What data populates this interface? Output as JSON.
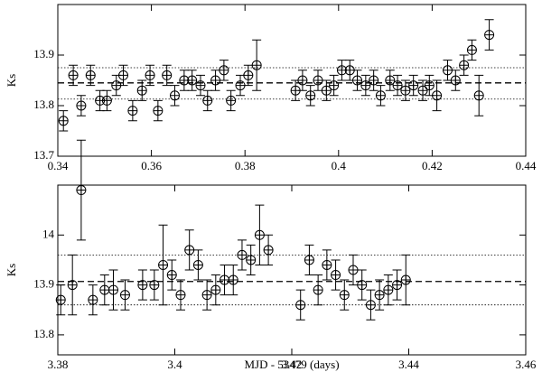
{
  "chart_data": [
    {
      "type": "scatter",
      "ylabel": "Ks",
      "color": "#000000",
      "x": [
        0.3412,
        0.3433,
        0.345,
        0.347,
        0.349,
        0.3505,
        0.3525,
        0.354,
        0.356,
        0.358,
        0.3597,
        0.3614,
        0.3633,
        0.365,
        0.367,
        0.3687,
        0.3705,
        0.372,
        0.3737,
        0.3755,
        0.377,
        0.379,
        0.3807,
        0.3825,
        0.3908,
        0.3923,
        0.394,
        0.3956,
        0.3974,
        0.399,
        0.4007,
        0.4024,
        0.404,
        0.4058,
        0.4075,
        0.409,
        0.411,
        0.4126,
        0.4143,
        0.416,
        0.418,
        0.4194,
        0.421,
        0.4233,
        0.425,
        0.4268,
        0.4285,
        0.43,
        0.4322
      ],
      "values": [
        13.77,
        13.86,
        13.8,
        13.86,
        13.81,
        13.81,
        13.84,
        13.86,
        13.79,
        13.83,
        13.86,
        13.79,
        13.86,
        13.82,
        13.85,
        13.85,
        13.84,
        13.81,
        13.85,
        13.87,
        13.81,
        13.84,
        13.86,
        13.88,
        13.83,
        13.85,
        13.82,
        13.85,
        13.83,
        13.84,
        13.87,
        13.87,
        13.85,
        13.84,
        13.85,
        13.82,
        13.85,
        13.84,
        13.83,
        13.84,
        13.83,
        13.84,
        13.82,
        13.87,
        13.85,
        13.88,
        13.91,
        13.82,
        13.94
      ],
      "errors": [
        0.02,
        0.02,
        0.02,
        0.02,
        0.02,
        0.02,
        0.02,
        0.02,
        0.02,
        0.02,
        0.02,
        0.02,
        0.02,
        0.02,
        0.02,
        0.02,
        0.02,
        0.02,
        0.02,
        0.02,
        0.02,
        0.02,
        0.02,
        0.05,
        0.02,
        0.02,
        0.02,
        0.02,
        0.02,
        0.02,
        0.02,
        0.02,
        0.02,
        0.02,
        0.02,
        0.02,
        0.02,
        0.02,
        0.02,
        0.02,
        0.02,
        0.02,
        0.03,
        0.02,
        0.02,
        0.02,
        0.02,
        0.04,
        0.03
      ],
      "xlim": [
        0.34,
        0.44
      ],
      "xticks": [
        0.34,
        0.36,
        0.38,
        0.4,
        0.42,
        0.44
      ],
      "ylim": [
        13.7,
        14.0
      ],
      "yticks": [
        13.7,
        13.8,
        13.9
      ],
      "hlines": [
        {
          "value": 13.845,
          "style": "dashed"
        },
        {
          "value": 13.875,
          "style": "dotted"
        },
        {
          "value": 13.813,
          "style": "dotted"
        }
      ]
    },
    {
      "type": "scatter",
      "ylabel": "Ks",
      "xlabel": "MJD - 53479 (days)",
      "color": "#000000",
      "x": [
        3.3805,
        3.3825,
        3.384,
        3.386,
        3.388,
        3.3895,
        3.3915,
        3.3945,
        3.3965,
        3.398,
        3.3995,
        3.401,
        3.4025,
        3.404,
        3.4055,
        3.407,
        3.4085,
        3.41,
        3.4115,
        3.413,
        3.4145,
        3.416,
        3.4215,
        3.423,
        3.4245,
        3.426,
        3.4275,
        3.429,
        3.4305,
        3.432,
        3.4335,
        3.435,
        3.4365,
        3.438,
        3.4395
      ],
      "values": [
        13.87,
        13.9,
        14.09,
        13.87,
        13.89,
        13.89,
        13.88,
        13.9,
        13.9,
        13.94,
        13.92,
        13.88,
        13.97,
        13.94,
        13.88,
        13.89,
        13.91,
        13.91,
        13.96,
        13.95,
        14.0,
        13.97,
        13.86,
        13.95,
        13.89,
        13.94,
        13.92,
        13.88,
        13.93,
        13.9,
        13.86,
        13.88,
        13.89,
        13.9,
        13.91
      ],
      "errors": [
        0.03,
        0.06,
        0.1,
        0.03,
        0.03,
        0.04,
        0.03,
        0.03,
        0.03,
        0.08,
        0.03,
        0.03,
        0.04,
        0.03,
        0.03,
        0.03,
        0.03,
        0.03,
        0.03,
        0.03,
        0.06,
        0.03,
        0.03,
        0.03,
        0.03,
        0.03,
        0.03,
        0.03,
        0.03,
        0.03,
        0.03,
        0.03,
        0.03,
        0.03,
        0.05
      ],
      "xlim": [
        3.38,
        3.46
      ],
      "xticks": [
        3.38,
        3.4,
        3.42,
        3.44,
        3.46
      ],
      "ylim": [
        13.76,
        14.1
      ],
      "yticks": [
        13.8,
        13.9,
        14
      ],
      "hlines": [
        {
          "value": 13.907,
          "style": "dashed"
        },
        {
          "value": 13.96,
          "style": "dotted"
        },
        {
          "value": 13.86,
          "style": "dotted"
        }
      ]
    }
  ]
}
